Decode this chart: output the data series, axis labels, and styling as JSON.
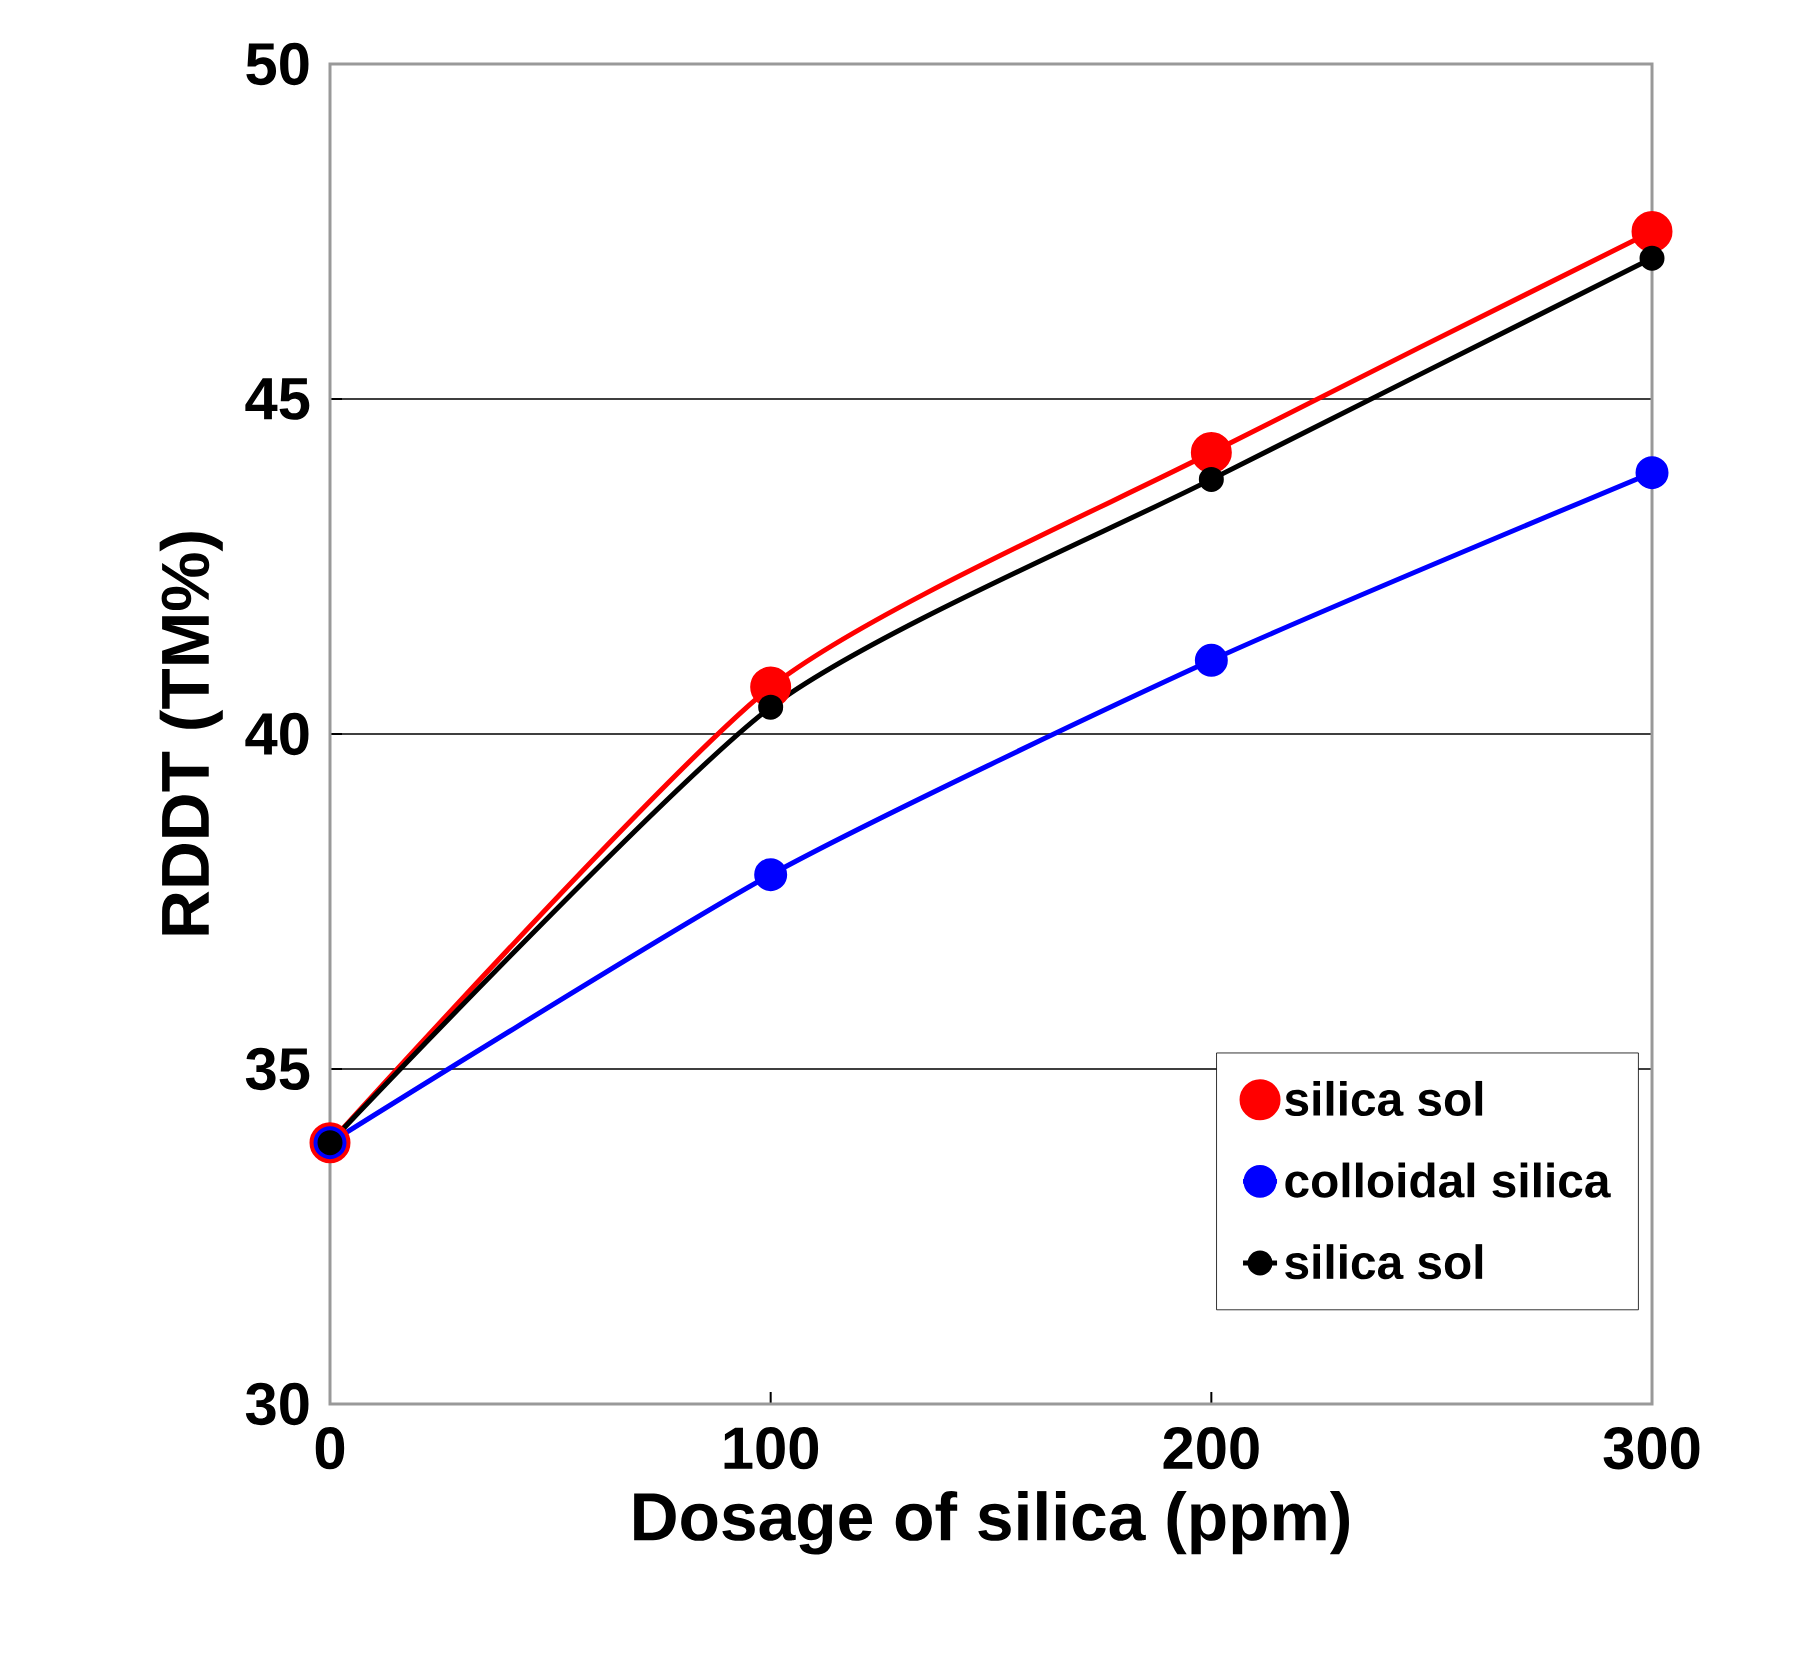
{
  "chart_data": {
    "type": "line",
    "xlabel": "Dosage of silica (ppm)",
    "ylabel": "RDDT (TM%)",
    "x": [
      0,
      100,
      200,
      300
    ],
    "series": [
      {
        "name": "silica sol",
        "color": "#ff0000",
        "values": [
          33.9,
          40.7,
          44.2,
          47.5
        ]
      },
      {
        "name": "colloidal silica",
        "color": "#0000ff",
        "values": [
          33.9,
          37.9,
          41.1,
          43.9
        ]
      },
      {
        "name": "silica sol",
        "color": "#000000",
        "values": [
          33.9,
          40.4,
          43.8,
          47.1
        ]
      }
    ],
    "xlim": [
      0,
      300
    ],
    "xticks": [
      0,
      100,
      200,
      300
    ],
    "ylim": [
      30,
      50
    ],
    "yticks": [
      30,
      35,
      40,
      45,
      50
    ],
    "grid": "y",
    "legend": "bottom right",
    "marker": "circle",
    "line_style": "solid"
  }
}
